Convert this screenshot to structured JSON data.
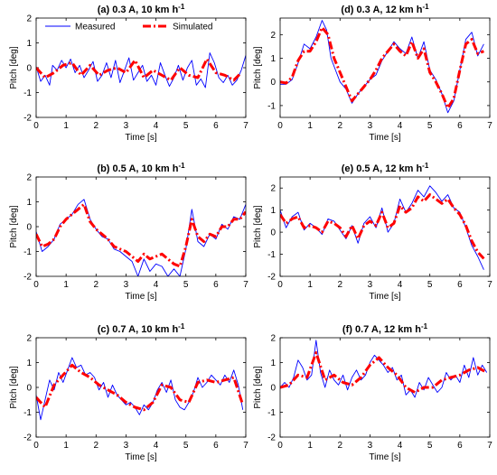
{
  "chart_data": [
    {
      "type": "line",
      "title": "(a) 0.3 A, 10 km h",
      "title_superscript": "-1",
      "xlabel": "Time [s]",
      "ylabel": "Pitch [deg]",
      "xlim": [
        0,
        7
      ],
      "ylim": [
        -2,
        2
      ],
      "xticks": [
        0,
        1,
        2,
        3,
        4,
        5,
        6,
        7
      ],
      "yticks": [
        -2,
        -1,
        0,
        1,
        2
      ],
      "legend": {
        "placement": "top",
        "entries": [
          "Measured",
          "Simulated"
        ]
      },
      "series": [
        {
          "name": "Measured",
          "color": "#0000ff",
          "x": [
            0,
            0.15,
            0.3,
            0.45,
            0.55,
            0.7,
            0.85,
            1.0,
            1.15,
            1.3,
            1.45,
            1.6,
            1.75,
            1.9,
            2.05,
            2.2,
            2.35,
            2.5,
            2.65,
            2.8,
            2.95,
            3.1,
            3.25,
            3.4,
            3.55,
            3.7,
            3.85,
            4.0,
            4.15,
            4.3,
            4.45,
            4.6,
            4.75,
            4.9,
            5.05,
            5.2,
            5.35,
            5.5,
            5.65,
            5.8,
            5.95,
            6.1,
            6.25,
            6.4,
            6.55,
            6.7,
            6.85,
            7.0
          ],
          "y": [
            0.05,
            -0.55,
            -0.3,
            -0.7,
            0.1,
            -0.1,
            0.3,
            0.0,
            0.35,
            -0.2,
            0.1,
            -0.4,
            -0.1,
            0.25,
            -0.55,
            -0.3,
            0.2,
            -0.4,
            0.3,
            -0.6,
            -0.1,
            0.4,
            -0.5,
            -0.2,
            0.1,
            -0.55,
            -0.3,
            -0.7,
            0.2,
            -0.3,
            -0.75,
            -0.4,
            0.1,
            -0.5,
            0.0,
            0.3,
            -0.7,
            -0.45,
            -0.8,
            0.6,
            0.2,
            -0.4,
            -0.6,
            -0.3,
            -0.7,
            -0.5,
            -0.1,
            0.5
          ]
        },
        {
          "name": "Simulated",
          "color": "#ff0000",
          "x": [
            0,
            0.3,
            0.6,
            0.9,
            1.2,
            1.5,
            1.8,
            2.1,
            2.4,
            2.7,
            3.0,
            3.3,
            3.6,
            3.9,
            4.2,
            4.5,
            4.8,
            5.1,
            5.4,
            5.7,
            6.0,
            6.3,
            6.6,
            6.85
          ],
          "y": [
            0.0,
            -0.4,
            -0.2,
            0.1,
            0.2,
            -0.3,
            0.1,
            -0.3,
            -0.1,
            0.0,
            -0.2,
            0.3,
            -0.4,
            -0.1,
            -0.3,
            -0.5,
            0.0,
            -0.3,
            -0.4,
            0.35,
            -0.2,
            -0.3,
            -0.5,
            -0.2
          ]
        }
      ]
    },
    {
      "type": "line",
      "title": "(d) 0.3 A, 12 km h",
      "title_superscript": "-1",
      "xlabel": "Time [s]",
      "ylabel": "Pitch [deg]",
      "xlim": [
        0,
        7
      ],
      "ylim": [
        -1.5,
        2.7
      ],
      "xticks": [
        0,
        1,
        2,
        3,
        4,
        5,
        6,
        7
      ],
      "yticks": [
        -1,
        0,
        1,
        2
      ],
      "series": [
        {
          "name": "Measured",
          "color": "#0000ff",
          "x": [
            0,
            0.2,
            0.4,
            0.6,
            0.8,
            1.0,
            1.2,
            1.4,
            1.55,
            1.7,
            1.85,
            2.0,
            2.2,
            2.4,
            2.6,
            2.8,
            3.0,
            3.2,
            3.4,
            3.6,
            3.8,
            4.0,
            4.2,
            4.4,
            4.6,
            4.8,
            5.0,
            5.2,
            5.4,
            5.6,
            5.8,
            6.0,
            6.2,
            6.4,
            6.6,
            6.8
          ],
          "y": [
            -0.1,
            -0.1,
            0.1,
            0.8,
            1.6,
            1.4,
            1.9,
            2.6,
            2.2,
            1.0,
            0.5,
            0.0,
            -0.3,
            -0.9,
            -0.5,
            -0.2,
            0.1,
            0.3,
            0.9,
            1.3,
            1.7,
            1.4,
            1.2,
            1.9,
            1.0,
            1.7,
            0.5,
            0.1,
            -0.5,
            -1.3,
            -0.8,
            0.5,
            1.8,
            2.1,
            1.1,
            1.6
          ]
        },
        {
          "name": "Simulated",
          "color": "#ff0000",
          "x": [
            0,
            0.2,
            0.4,
            0.6,
            0.8,
            1.0,
            1.2,
            1.4,
            1.6,
            1.8,
            2.0,
            2.2,
            2.4,
            2.6,
            2.8,
            3.0,
            3.2,
            3.4,
            3.6,
            3.8,
            4.0,
            4.2,
            4.4,
            4.6,
            4.8,
            5.0,
            5.2,
            5.4,
            5.6,
            5.8,
            6.0,
            6.2,
            6.4,
            6.6,
            6.8
          ],
          "y": [
            0.0,
            -0.05,
            0.2,
            0.9,
            1.3,
            1.3,
            1.7,
            2.3,
            2.0,
            1.0,
            0.4,
            -0.2,
            -0.8,
            -0.5,
            -0.2,
            0.1,
            0.5,
            1.0,
            1.3,
            1.6,
            1.3,
            1.1,
            1.7,
            1.0,
            1.4,
            0.4,
            0.0,
            -0.5,
            -1.1,
            -0.7,
            0.5,
            1.6,
            1.8,
            1.2,
            1.3
          ]
        }
      ]
    },
    {
      "type": "line",
      "title": "(b) 0.5 A, 10 km h",
      "title_superscript": "-1",
      "xlabel": "Time [s]",
      "ylabel": "Pitch [deg]",
      "xlim": [
        0,
        7
      ],
      "ylim": [
        -2,
        2
      ],
      "xticks": [
        0,
        1,
        2,
        3,
        4,
        5,
        6,
        7
      ],
      "yticks": [
        -2,
        -1,
        0,
        1,
        2
      ],
      "series": [
        {
          "name": "Measured",
          "color": "#0000ff",
          "x": [
            0,
            0.2,
            0.4,
            0.6,
            0.8,
            1.0,
            1.2,
            1.4,
            1.6,
            1.8,
            2.0,
            2.2,
            2.4,
            2.6,
            2.8,
            3.0,
            3.2,
            3.4,
            3.6,
            3.8,
            4.0,
            4.2,
            4.4,
            4.6,
            4.8,
            5.0,
            5.2,
            5.4,
            5.6,
            5.8,
            6.0,
            6.2,
            6.4,
            6.6,
            6.8,
            7.0
          ],
          "y": [
            -0.2,
            -1.0,
            -0.8,
            -0.5,
            0.1,
            0.3,
            0.5,
            0.9,
            1.1,
            0.3,
            -0.1,
            -0.4,
            -0.5,
            -0.9,
            -1.0,
            -1.2,
            -1.4,
            -2.0,
            -1.3,
            -1.8,
            -1.5,
            -1.6,
            -2.0,
            -1.7,
            -2.0,
            -0.9,
            0.7,
            -0.6,
            -0.8,
            -0.3,
            -0.5,
            0.1,
            -0.1,
            0.4,
            0.3,
            0.9
          ]
        },
        {
          "name": "Simulated",
          "color": "#ff0000",
          "x": [
            0,
            0.2,
            0.4,
            0.6,
            0.8,
            1.0,
            1.2,
            1.4,
            1.6,
            1.8,
            2.0,
            2.2,
            2.4,
            2.6,
            2.8,
            3.0,
            3.2,
            3.4,
            3.6,
            3.8,
            4.0,
            4.2,
            4.4,
            4.6,
            4.8,
            5.0,
            5.2,
            5.4,
            5.6,
            5.8,
            6.0,
            6.2,
            6.4,
            6.6,
            6.8,
            7.0
          ],
          "y": [
            -0.3,
            -0.8,
            -0.7,
            -0.5,
            0.0,
            0.3,
            0.5,
            0.7,
            0.9,
            0.2,
            -0.1,
            -0.3,
            -0.5,
            -0.8,
            -0.9,
            -1.0,
            -1.2,
            -1.4,
            -1.1,
            -1.3,
            -1.2,
            -1.1,
            -1.3,
            -1.5,
            -1.6,
            -0.8,
            0.3,
            -0.4,
            -0.6,
            -0.3,
            -0.4,
            0.0,
            0.0,
            0.3,
            0.3,
            0.6
          ]
        }
      ]
    },
    {
      "type": "line",
      "title": "(e) 0.5 A, 12 km h",
      "title_superscript": "-1",
      "xlabel": "Time [s]",
      "ylabel": "Pitch [deg]",
      "xlim": [
        0,
        7
      ],
      "ylim": [
        -2,
        2.5
      ],
      "xticks": [
        0,
        1,
        2,
        3,
        4,
        5,
        6,
        7
      ],
      "yticks": [
        -2,
        -1,
        0,
        1,
        2
      ],
      "series": [
        {
          "name": "Measured",
          "color": "#0000ff",
          "x": [
            0,
            0.2,
            0.4,
            0.6,
            0.8,
            1.0,
            1.2,
            1.4,
            1.6,
            1.8,
            2.0,
            2.2,
            2.4,
            2.6,
            2.8,
            3.0,
            3.2,
            3.4,
            3.6,
            3.8,
            4.0,
            4.2,
            4.4,
            4.6,
            4.8,
            5.0,
            5.2,
            5.4,
            5.6,
            5.8,
            6.0,
            6.2,
            6.4,
            6.6,
            6.8
          ],
          "y": [
            1.0,
            0.2,
            0.7,
            0.9,
            0.1,
            0.4,
            0.2,
            -0.1,
            0.6,
            0.5,
            0.1,
            -0.3,
            0.3,
            -0.5,
            0.4,
            0.7,
            0.2,
            1.1,
            0.0,
            0.4,
            1.5,
            0.9,
            1.3,
            1.9,
            1.6,
            2.1,
            1.8,
            1.4,
            1.7,
            1.1,
            0.9,
            0.2,
            -0.6,
            -1.1,
            -1.7
          ]
        },
        {
          "name": "Simulated",
          "color": "#ff0000",
          "x": [
            0,
            0.2,
            0.4,
            0.6,
            0.8,
            1.0,
            1.2,
            1.4,
            1.6,
            1.8,
            2.0,
            2.2,
            2.4,
            2.6,
            2.8,
            3.0,
            3.2,
            3.4,
            3.6,
            3.8,
            4.0,
            4.2,
            4.4,
            4.6,
            4.8,
            5.0,
            5.2,
            5.4,
            5.6,
            5.8,
            6.0,
            6.2,
            6.4,
            6.6,
            6.8
          ],
          "y": [
            0.8,
            0.4,
            0.6,
            0.7,
            0.2,
            0.3,
            0.2,
            0.0,
            0.5,
            0.4,
            0.2,
            -0.2,
            0.3,
            -0.3,
            0.3,
            0.5,
            0.3,
            0.9,
            0.2,
            0.4,
            1.2,
            0.9,
            1.1,
            1.6,
            1.4,
            1.7,
            1.5,
            1.3,
            1.5,
            1.1,
            0.8,
            0.3,
            -0.4,
            -0.9,
            -1.2
          ]
        }
      ]
    },
    {
      "type": "line",
      "title": "(c) 0.7 A, 10 km h",
      "title_superscript": "-1",
      "xlabel": "Time [s]",
      "ylabel": "Pitch [deg]",
      "xlim": [
        0,
        7
      ],
      "ylim": [
        -2,
        2
      ],
      "xticks": [
        0,
        1,
        2,
        3,
        4,
        5,
        6,
        7
      ],
      "yticks": [
        -2,
        -1,
        0,
        1,
        2
      ],
      "series": [
        {
          "name": "Measured",
          "color": "#0000ff",
          "x": [
            0,
            0.15,
            0.3,
            0.45,
            0.6,
            0.75,
            0.9,
            1.05,
            1.2,
            1.35,
            1.5,
            1.65,
            1.8,
            1.95,
            2.1,
            2.25,
            2.4,
            2.55,
            2.7,
            2.85,
            3.0,
            3.15,
            3.3,
            3.45,
            3.6,
            3.75,
            3.9,
            4.05,
            4.2,
            4.35,
            4.5,
            4.65,
            4.8,
            4.95,
            5.1,
            5.25,
            5.4,
            5.55,
            5.7,
            5.85,
            6.0,
            6.15,
            6.3,
            6.45,
            6.6,
            6.75,
            6.9
          ],
          "y": [
            -0.3,
            -1.3,
            -0.5,
            0.3,
            -0.1,
            0.6,
            0.2,
            0.7,
            1.2,
            0.8,
            0.9,
            0.5,
            0.6,
            0.4,
            -0.1,
            0.2,
            -0.4,
            0.1,
            -0.3,
            -0.5,
            -0.7,
            -0.6,
            -0.8,
            -1.1,
            -0.7,
            -0.9,
            -0.6,
            -0.1,
            0.2,
            -0.2,
            0.3,
            -0.5,
            -0.8,
            -0.9,
            -0.6,
            -0.2,
            0.4,
            0.0,
            0.2,
            0.5,
            0.3,
            0.1,
            0.5,
            0.2,
            0.7,
            0.1,
            -0.9
          ]
        },
        {
          "name": "Simulated",
          "color": "#ff0000",
          "x": [
            0,
            0.3,
            0.6,
            0.9,
            1.2,
            1.5,
            1.8,
            2.1,
            2.4,
            2.7,
            3.0,
            3.3,
            3.6,
            3.9,
            4.2,
            4.5,
            4.8,
            5.1,
            5.4,
            5.7,
            6.0,
            6.3,
            6.6,
            6.9
          ],
          "y": [
            -0.4,
            -0.8,
            0.1,
            0.5,
            0.9,
            0.6,
            0.4,
            0.1,
            -0.1,
            -0.3,
            -0.6,
            -0.8,
            -0.9,
            -0.6,
            0.1,
            0.0,
            -0.5,
            -0.6,
            0.2,
            0.3,
            0.2,
            0.3,
            0.4,
            -0.7
          ]
        }
      ]
    },
    {
      "type": "line",
      "title": "(f) 0.7 A, 12 km h",
      "title_superscript": "-1",
      "xlabel": "Time [s]",
      "ylabel": "Pitch [deg]",
      "xlim": [
        0,
        7
      ],
      "ylim": [
        -2,
        2
      ],
      "xticks": [
        0,
        1,
        2,
        3,
        4,
        5,
        6,
        7
      ],
      "yticks": [
        -2,
        -1,
        0,
        1,
        2
      ],
      "series": [
        {
          "name": "Measured",
          "color": "#0000ff",
          "x": [
            0,
            0.15,
            0.3,
            0.45,
            0.6,
            0.75,
            0.9,
            1.05,
            1.2,
            1.35,
            1.5,
            1.65,
            1.8,
            1.95,
            2.1,
            2.25,
            2.4,
            2.55,
            2.7,
            2.85,
            3.0,
            3.15,
            3.3,
            3.45,
            3.6,
            3.75,
            3.9,
            4.05,
            4.2,
            4.35,
            4.5,
            4.65,
            4.8,
            4.95,
            5.1,
            5.25,
            5.4,
            5.55,
            5.7,
            5.85,
            6.0,
            6.15,
            6.3,
            6.45,
            6.6,
            6.75,
            6.9
          ],
          "y": [
            0.0,
            0.2,
            0.0,
            0.4,
            1.1,
            0.8,
            0.3,
            0.5,
            1.9,
            0.6,
            0.0,
            0.7,
            0.3,
            0.1,
            0.5,
            -0.1,
            0.4,
            0.7,
            0.3,
            0.5,
            1.0,
            1.3,
            1.1,
            0.9,
            0.6,
            0.8,
            0.3,
            0.5,
            -0.3,
            -0.1,
            -0.4,
            0.2,
            -0.1,
            0.4,
            0.1,
            -0.2,
            0.0,
            0.6,
            0.3,
            0.5,
            0.2,
            0.9,
            0.4,
            1.2,
            0.5,
            0.9,
            0.6
          ]
        },
        {
          "name": "Simulated",
          "color": "#ff0000",
          "x": [
            0,
            0.3,
            0.6,
            0.9,
            1.2,
            1.5,
            1.8,
            2.1,
            2.4,
            2.7,
            3.0,
            3.3,
            3.6,
            3.9,
            4.2,
            4.5,
            4.8,
            5.1,
            5.4,
            5.7,
            6.0,
            6.3,
            6.6,
            6.9
          ],
          "y": [
            0.0,
            0.1,
            0.5,
            0.4,
            1.4,
            0.3,
            0.5,
            0.2,
            0.1,
            0.4,
            0.9,
            1.2,
            0.8,
            0.5,
            0.0,
            -0.2,
            0.0,
            0.0,
            0.3,
            0.4,
            0.5,
            0.7,
            0.8,
            0.6
          ]
        }
      ]
    }
  ]
}
